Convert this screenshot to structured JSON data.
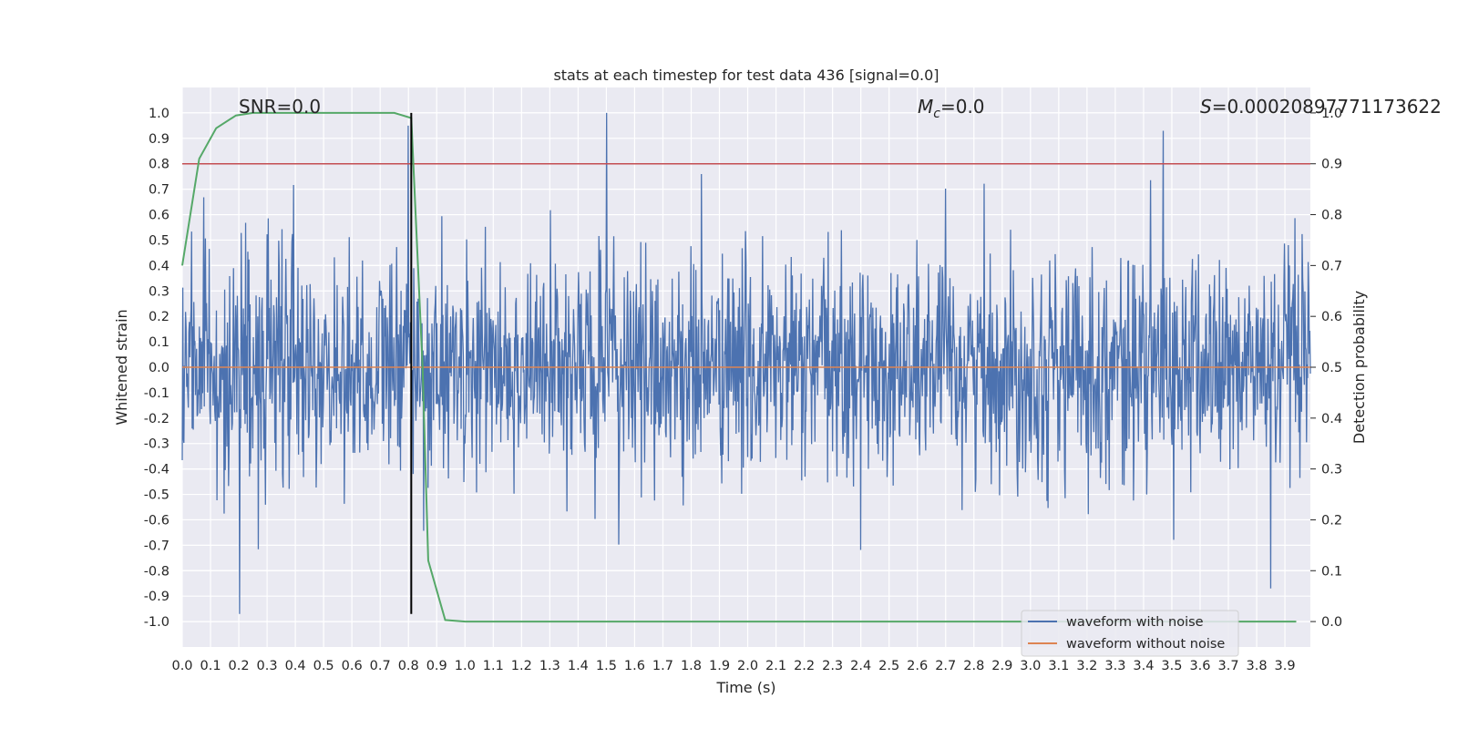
{
  "chart_data": {
    "type": "line",
    "title": "stats at each timestep for test data 436 [signal=0.0]",
    "xlabel": "Time (s)",
    "ylabel": "Whitened strain",
    "ylabel_right": "Detection probability",
    "xlim": [
      0.0,
      3.99
    ],
    "ylim": [
      -1.1,
      1.1
    ],
    "ylim_right": [
      -0.05,
      1.05
    ],
    "x_ticks": [
      "0.0",
      "0.1",
      "0.2",
      "0.3",
      "0.4",
      "0.5",
      "0.6",
      "0.7",
      "0.8",
      "0.9",
      "1.0",
      "1.1",
      "1.2",
      "1.3",
      "1.4",
      "1.5",
      "1.6",
      "1.7",
      "1.8",
      "1.9",
      "2.0",
      "2.1",
      "2.2",
      "2.3",
      "2.4",
      "2.5",
      "2.6",
      "2.7",
      "2.8",
      "2.9",
      "3.0",
      "3.1",
      "3.2",
      "3.3",
      "3.4",
      "3.5",
      "3.6",
      "3.7",
      "3.8",
      "3.9"
    ],
    "y_ticks": [
      "1.0",
      "0.9",
      "0.8",
      "0.7",
      "0.6",
      "0.5",
      "0.4",
      "0.3",
      "0.2",
      "0.1",
      "0.0",
      "-0.1",
      "-0.2",
      "-0.3",
      "-0.4",
      "-0.5",
      "-0.6",
      "-0.7",
      "-0.8",
      "-0.9",
      "-1.0"
    ],
    "y_ticks_right": [
      "1.0",
      "0.9",
      "0.8",
      "0.7",
      "0.6",
      "0.5",
      "0.4",
      "0.3",
      "0.2",
      "0.1",
      "0.0"
    ],
    "grid": true,
    "legend_position": "bottom-right",
    "series": [
      {
        "name": "waveform with noise",
        "axis": "left",
        "color": "#4c72b0",
        "style": "noise",
        "noise_points": 2048,
        "typical_amplitude": 0.3,
        "extreme_max": 1.0,
        "extreme_min": -0.97
      },
      {
        "name": "waveform without noise",
        "axis": "left",
        "color": "#dd8452",
        "values_constant": 0.0
      },
      {
        "axis": "right",
        "color": "#55a868",
        "x": [
          0.0,
          0.06,
          0.12,
          0.19,
          0.25,
          0.5,
          0.75,
          0.81,
          0.85,
          0.87,
          0.93,
          1.0,
          2.0,
          3.0,
          3.94
        ],
        "y": [
          0.7,
          0.91,
          0.97,
          0.995,
          1.0,
          1.0,
          1.0,
          0.99,
          0.5,
          0.12,
          0.003,
          0.0,
          0.0,
          0.0,
          0.0
        ]
      }
    ],
    "threshold_line": {
      "axis": "left",
      "y": 0.8,
      "color": "#c44e52"
    },
    "vertical_marker": {
      "x": 0.81,
      "y_range": [
        -0.97,
        1.0
      ],
      "color": "#000000"
    },
    "annotations": {
      "snr": "SNR=0.0",
      "mc_symbol": "M",
      "mc_sub": "c",
      "mc_value": "=0.0",
      "s_symbol": "S",
      "s_value": "=0.00020897771173622"
    }
  }
}
